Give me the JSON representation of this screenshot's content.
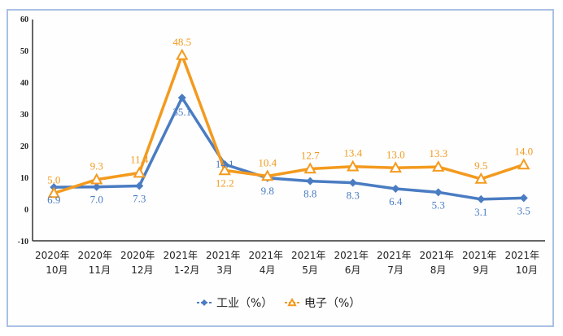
{
  "chart_data": {
    "type": "line",
    "title": "",
    "xlabel": "",
    "ylabel": "",
    "ylim": [
      -10,
      60
    ],
    "yticks": [
      60,
      50,
      40,
      30,
      20,
      10,
      0,
      -10
    ],
    "grid": false,
    "legend_position": "bottom",
    "categories": [
      [
        "2020年",
        "10月"
      ],
      [
        "2020年",
        "11月"
      ],
      [
        "2020年",
        "12月"
      ],
      [
        "2021年",
        "1-2月"
      ],
      [
        "2021年",
        "3月"
      ],
      [
        "2021年",
        "4月"
      ],
      [
        "2021年",
        "5月"
      ],
      [
        "2021年",
        "6月"
      ],
      [
        "2021年",
        "7月"
      ],
      [
        "2021年",
        "8月"
      ],
      [
        "2021年",
        "9月"
      ],
      [
        "2021年",
        "10月"
      ]
    ],
    "series": [
      {
        "name": "工业（%）",
        "color": "#4a7cc2",
        "marker": "diamond",
        "values": [
          6.9,
          7.0,
          7.3,
          35.1,
          14.1,
          9.8,
          8.8,
          8.3,
          6.4,
          5.3,
          3.1,
          3.5
        ],
        "labels": [
          "6.9",
          "7.0",
          "7.3",
          "35.1",
          "14.1",
          "9.8",
          "8.8",
          "8.3",
          "6.4",
          "5.3",
          "3.1",
          "3.5"
        ]
      },
      {
        "name": "电子（%）",
        "color": "#f39a1e",
        "marker": "triangle",
        "values": [
          5.0,
          9.3,
          11.4,
          48.5,
          12.2,
          10.4,
          12.7,
          13.4,
          13.0,
          13.3,
          9.5,
          14.0
        ],
        "labels": [
          "5.0",
          "9.3",
          "11.4",
          "48.5",
          "12.2",
          "10.4",
          "12.7",
          "13.4",
          "13.0",
          "13.3",
          "9.5",
          "14.0"
        ]
      }
    ]
  },
  "legend": {
    "items": [
      {
        "label": "工业（%）",
        "icon": "diamond-marker-icon",
        "color": "#4a7cc2"
      },
      {
        "label": "电子（%）",
        "icon": "triangle-marker-icon",
        "color": "#f39a1e"
      }
    ]
  }
}
